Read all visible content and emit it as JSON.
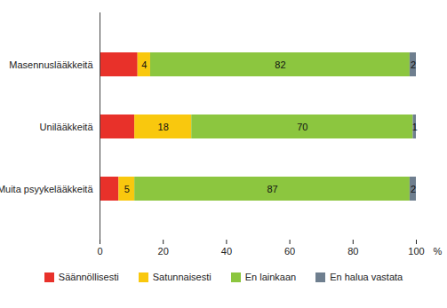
{
  "chart_data": {
    "type": "bar",
    "orientation": "horizontal",
    "stacked": true,
    "data_labels": true,
    "categories": [
      "Masennuslääkkeitä",
      "Unilääkkeitä",
      "Muita psyykelääkkeitä"
    ],
    "series": [
      {
        "name": "Säännöllisesti",
        "color": "#e8312a",
        "values": [
          12,
          11,
          6
        ],
        "value_labels": [
          null,
          null,
          null
        ]
      },
      {
        "name": "Satunnaisesti",
        "color": "#f9c80e",
        "values": [
          4,
          18,
          5
        ]
      },
      {
        "name": "En lainkaan",
        "color": "#8cc63f",
        "values": [
          82,
          70,
          87
        ]
      },
      {
        "name": "En halua vastata",
        "color": "#6f7f8f",
        "values": [
          2,
          1,
          2
        ]
      }
    ],
    "xlim": [
      0,
      100
    ],
    "xticks": [
      0,
      20,
      40,
      60,
      80,
      100
    ],
    "xlabel": "%",
    "grid": false,
    "legend": "bottom"
  }
}
